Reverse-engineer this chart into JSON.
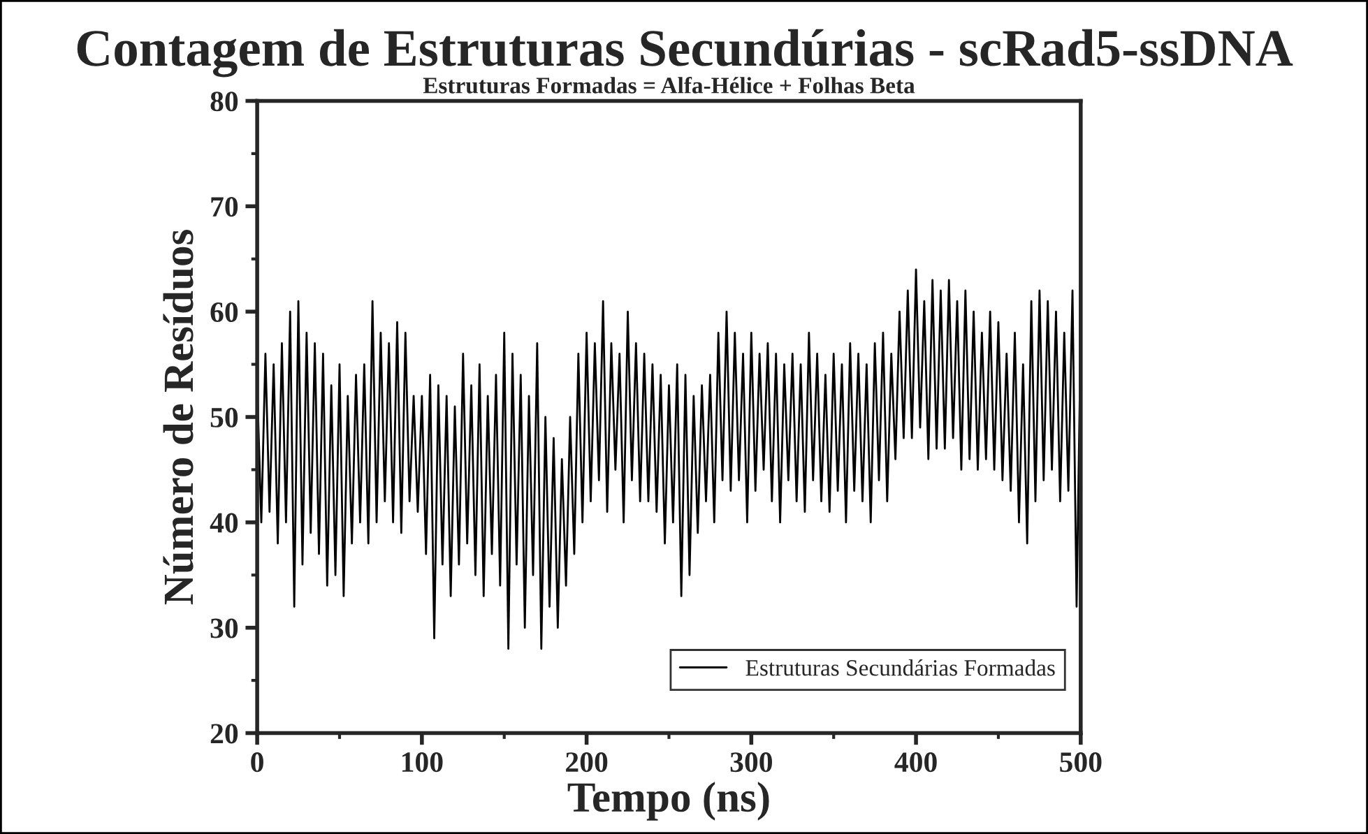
{
  "chart_data": {
    "type": "line",
    "title": "Contagem de Estruturas Secundúrias - scRad5-ssDNA",
    "subtitle": "Estruturas Formadas = Alfa-Hélice + Folhas Beta",
    "xlabel": "Tempo (ns)",
    "ylabel": "Número de Resíduos",
    "xlim": [
      0,
      500
    ],
    "xticks": [
      0,
      100,
      200,
      300,
      400,
      500
    ],
    "ylim": [
      20,
      80
    ],
    "yticks": [
      20,
      30,
      40,
      50,
      60,
      70,
      80
    ],
    "grid": false,
    "legend": "bottom right",
    "series": [
      {
        "name": "Estruturas Secundárias Formadas",
        "color": "#000000",
        "x": [
          0,
          2.5,
          5,
          7.5,
          10,
          12.5,
          15,
          17.5,
          20,
          22.5,
          25,
          27.5,
          30,
          32.5,
          35,
          37.5,
          40,
          42.5,
          45,
          47.5,
          50,
          52.5,
          55,
          57.5,
          60,
          62.5,
          65,
          67.5,
          70,
          72.5,
          75,
          77.5,
          80,
          82.5,
          85,
          87.5,
          90,
          92.5,
          95,
          97.5,
          100,
          102.5,
          105,
          107.5,
          110,
          112.5,
          115,
          117.5,
          120,
          122.5,
          125,
          127.5,
          130,
          132.5,
          135,
          137.5,
          140,
          142.5,
          145,
          147.5,
          150,
          152.5,
          155,
          157.5,
          160,
          162.5,
          165,
          167.5,
          170,
          172.5,
          175,
          177.5,
          180,
          182.5,
          185,
          187.5,
          190,
          192.5,
          195,
          197.5,
          200,
          202.5,
          205,
          207.5,
          210,
          212.5,
          215,
          217.5,
          220,
          222.5,
          225,
          227.5,
          230,
          232.5,
          235,
          237.5,
          240,
          242.5,
          245,
          247.5,
          250,
          252.5,
          255,
          257.5,
          260,
          262.5,
          265,
          267.5,
          270,
          272.5,
          275,
          277.5,
          280,
          282.5,
          285,
          287.5,
          290,
          292.5,
          295,
          297.5,
          300,
          302.5,
          305,
          307.5,
          310,
          312.5,
          315,
          317.5,
          320,
          322.5,
          325,
          327.5,
          330,
          332.5,
          335,
          337.5,
          340,
          342.5,
          345,
          347.5,
          350,
          352.5,
          355,
          357.5,
          360,
          362.5,
          365,
          367.5,
          370,
          372.5,
          375,
          377.5,
          380,
          382.5,
          385,
          387.5,
          390,
          392.5,
          395,
          397.5,
          400,
          402.5,
          405,
          407.5,
          410,
          412.5,
          415,
          417.5,
          420,
          422.5,
          425,
          427.5,
          430,
          432.5,
          435,
          437.5,
          440,
          442.5,
          445,
          447.5,
          450,
          452.5,
          455,
          457.5,
          460,
          462.5,
          465,
          467.5,
          470,
          472.5,
          475,
          477.5,
          480,
          482.5,
          485,
          487.5,
          490,
          492.5,
          495,
          497.5,
          500
        ],
        "values": [
          53,
          40,
          56,
          41,
          55,
          38,
          57,
          40,
          60,
          32,
          61,
          36,
          58,
          39,
          57,
          37,
          56,
          34,
          53,
          35,
          55,
          33,
          52,
          38,
          54,
          40,
          55,
          38,
          61,
          40,
          58,
          42,
          57,
          40,
          59,
          39,
          58,
          42,
          52,
          41,
          52,
          37,
          54,
          29,
          53,
          36,
          52,
          33,
          51,
          36,
          56,
          38,
          53,
          35,
          55,
          33,
          52,
          37,
          54,
          34,
          58,
          28,
          56,
          36,
          54,
          30,
          52,
          35,
          57,
          28,
          50,
          32,
          48,
          30,
          46,
          34,
          50,
          37,
          56,
          40,
          58,
          42,
          57,
          44,
          61,
          41,
          57,
          45,
          56,
          40,
          60,
          44,
          57,
          42,
          56,
          42,
          55,
          41,
          54,
          38,
          53,
          40,
          55,
          33,
          54,
          35,
          52,
          39,
          53,
          42,
          54,
          40,
          58,
          44,
          60,
          43,
          58,
          44,
          56,
          40,
          58,
          43,
          56,
          45,
          57,
          42,
          56,
          40,
          55,
          44,
          56,
          42,
          55,
          41,
          58,
          44,
          56,
          42,
          54,
          41,
          56,
          43,
          55,
          40,
          57,
          43,
          56,
          42,
          55,
          40,
          57,
          44,
          58,
          42,
          56,
          46,
          60,
          48,
          62,
          48,
          64,
          49,
          61,
          46,
          63,
          47,
          62,
          47,
          63,
          48,
          61,
          45,
          62,
          46,
          60,
          45,
          58,
          46,
          60,
          45,
          59,
          44,
          56,
          43,
          58,
          40,
          55,
          38,
          61,
          42,
          62,
          44,
          61,
          45,
          60,
          42,
          58,
          43,
          62,
          32,
          58
        ]
      }
    ]
  }
}
